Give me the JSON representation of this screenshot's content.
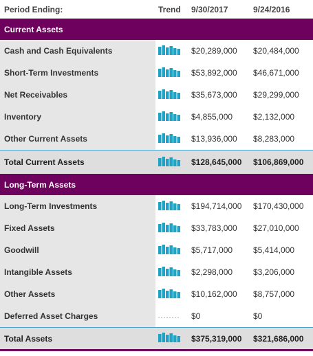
{
  "header": {
    "label": "Period Ending:",
    "trend": "Trend",
    "col1": "9/30/2017",
    "col2": "9/24/2016"
  },
  "sections": [
    {
      "title": "Current Assets",
      "rows": [
        [
          "Cash and Cash Equivalents",
          "$20,289,000",
          "$20,484,000"
        ],
        [
          "Short-Term Investments",
          "$53,892,000",
          "$46,671,000"
        ],
        [
          "Net Receivables",
          "$35,673,000",
          "$29,299,000"
        ],
        [
          "Inventory",
          "$4,855,000",
          "$2,132,000"
        ],
        [
          "Other Current Assets",
          "$13,936,000",
          "$8,283,000"
        ]
      ],
      "total": [
        "Total Current Assets",
        "$128,645,000",
        "$106,869,000"
      ]
    },
    {
      "title": "Long-Term Assets",
      "rows": [
        [
          "Long-Term Investments",
          "$194,714,000",
          "$170,430,000"
        ],
        [
          "Fixed Assets",
          "$33,783,000",
          "$27,010,000"
        ],
        [
          "Goodwill",
          "$5,717,000",
          "$5,414,000"
        ],
        [
          "Intangible Assets",
          "$2,298,000",
          "$3,206,000"
        ],
        [
          "Other Assets",
          "$10,162,000",
          "$8,757,000"
        ],
        [
          "Deferred Asset Charges",
          "$0",
          "$0"
        ]
      ],
      "total": [
        "Total Assets",
        "$375,319,000",
        "$321,686,000"
      ]
    }
  ]
}
